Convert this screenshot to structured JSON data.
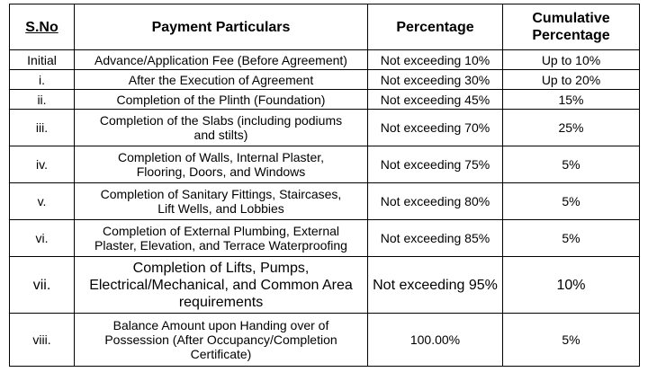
{
  "table": {
    "headers": {
      "sno": "S.No",
      "particulars": "Payment Particulars",
      "percentage": "Percentage",
      "cumulative_line1": "Cumulative",
      "cumulative_line2": "Percentage"
    },
    "rows": [
      {
        "sno": "Initial",
        "particulars": [
          "Advance/Application Fee (Before Agreement)"
        ],
        "percentage": "Not exceeding 10%",
        "cumulative": "Up to 10%"
      },
      {
        "sno": "i.",
        "particulars": [
          "After the Execution of Agreement"
        ],
        "percentage": "Not exceeding 30%",
        "cumulative": "Up to 20%"
      },
      {
        "sno": "ii.",
        "particulars": [
          "Completion of the Plinth (Foundation)"
        ],
        "percentage": "Not exceeding 45%",
        "cumulative": "15%"
      },
      {
        "sno": "iii.",
        "particulars": [
          "Completion of the Slabs (including podiums",
          "and stilts)"
        ],
        "percentage": "Not exceeding 70%",
        "cumulative": "25%"
      },
      {
        "sno": "iv.",
        "particulars": [
          "Completion of Walls, Internal Plaster,",
          "Flooring, Doors, and Windows"
        ],
        "percentage": "Not exceeding 75%",
        "cumulative": "5%"
      },
      {
        "sno": "v.",
        "particulars": [
          "Completion of Sanitary Fittings, Staircases,",
          "Lift Wells, and Lobbies"
        ],
        "percentage": "Not exceeding 80%",
        "cumulative": "5%"
      },
      {
        "sno": "vi.",
        "particulars": [
          "Completion of External Plumbing, External",
          "Plaster, Elevation, and Terrace Waterproofing"
        ],
        "percentage": "Not exceeding 85%",
        "cumulative": "5%"
      },
      {
        "sno": "vii.",
        "particulars": [
          "Completion of Lifts, Pumps,",
          "Electrical/Mechanical, and Common Area",
          "requirements"
        ],
        "percentage": "Not exceeding 95%",
        "cumulative": "10%"
      },
      {
        "sno": "viii.",
        "particulars": [
          "Balance Amount upon Handing over of",
          "Possession (After Occupancy/Completion",
          "Certificate)"
        ],
        "percentage": "100.00%",
        "cumulative": "5%"
      }
    ]
  }
}
